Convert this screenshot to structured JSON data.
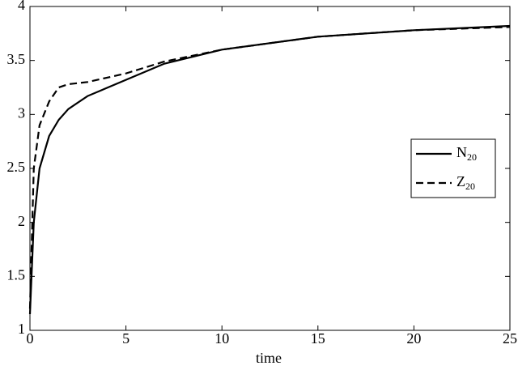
{
  "chart_data": {
    "type": "line",
    "xlabel": "time",
    "x": [
      0,
      0.2,
      0.5,
      1,
      1.5,
      2,
      3,
      5,
      7,
      10,
      15,
      20,
      25
    ],
    "series": [
      {
        "name": "N20",
        "color": "#000000",
        "dashed": false,
        "values": [
          1.15,
          2.0,
          2.5,
          2.8,
          2.95,
          3.05,
          3.17,
          3.32,
          3.47,
          3.6,
          3.72,
          3.78,
          3.82
        ]
      },
      {
        "name": "Z20",
        "color": "#000000",
        "dashed": true,
        "values": [
          1.2,
          2.5,
          2.9,
          3.12,
          3.25,
          3.28,
          3.3,
          3.38,
          3.49,
          3.6,
          3.72,
          3.78,
          3.81
        ]
      }
    ],
    "xlim": [
      0,
      25
    ],
    "xticks": [
      0,
      5,
      10,
      15,
      20,
      25
    ],
    "ylim": [
      1,
      4
    ],
    "yticks": [
      1,
      1.5,
      2,
      2.5,
      3,
      3.5,
      4
    ],
    "grid": false,
    "legend": "right"
  }
}
